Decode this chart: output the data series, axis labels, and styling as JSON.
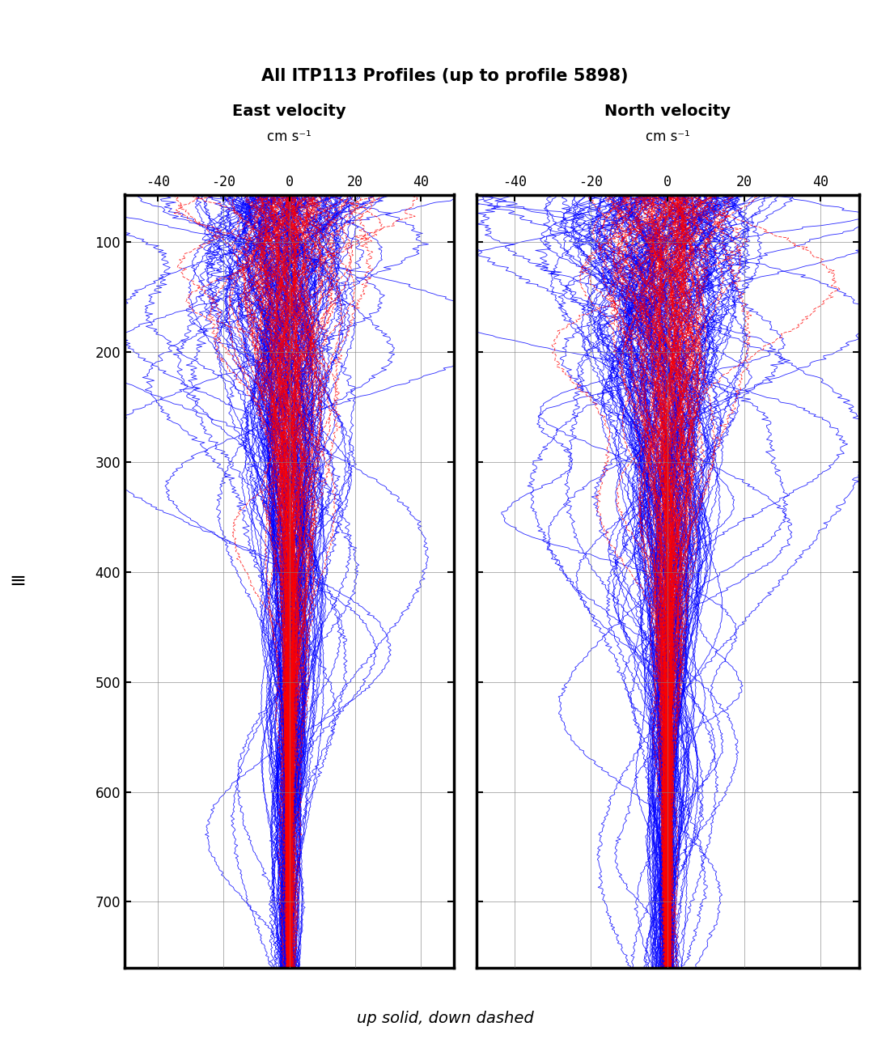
{
  "title": "All ITP113 Profiles (up to profile 5898)",
  "left_title": "East velocity",
  "right_title": "North velocity",
  "units": "cm s⁻¹",
  "footer_text": "up solid, down dashed",
  "xlim": [
    -50,
    50
  ],
  "ylim": [
    760,
    57
  ],
  "xticks": [
    -40,
    -20,
    0,
    20,
    40
  ],
  "yticks": [
    100,
    200,
    300,
    400,
    500,
    600,
    700
  ],
  "blue_color": "#0000FF",
  "red_color": "#FF0000",
  "n_profiles_up": 150,
  "n_profiles_down": 100,
  "depth_min": 57,
  "depth_max": 760,
  "depth_points": 500,
  "seed": 42,
  "title_fontsize": 15,
  "subtitle_fontsize": 14,
  "units_fontsize": 12,
  "tick_fontsize": 12,
  "ylabel_fontsize": 14,
  "footer_fontsize": 14
}
